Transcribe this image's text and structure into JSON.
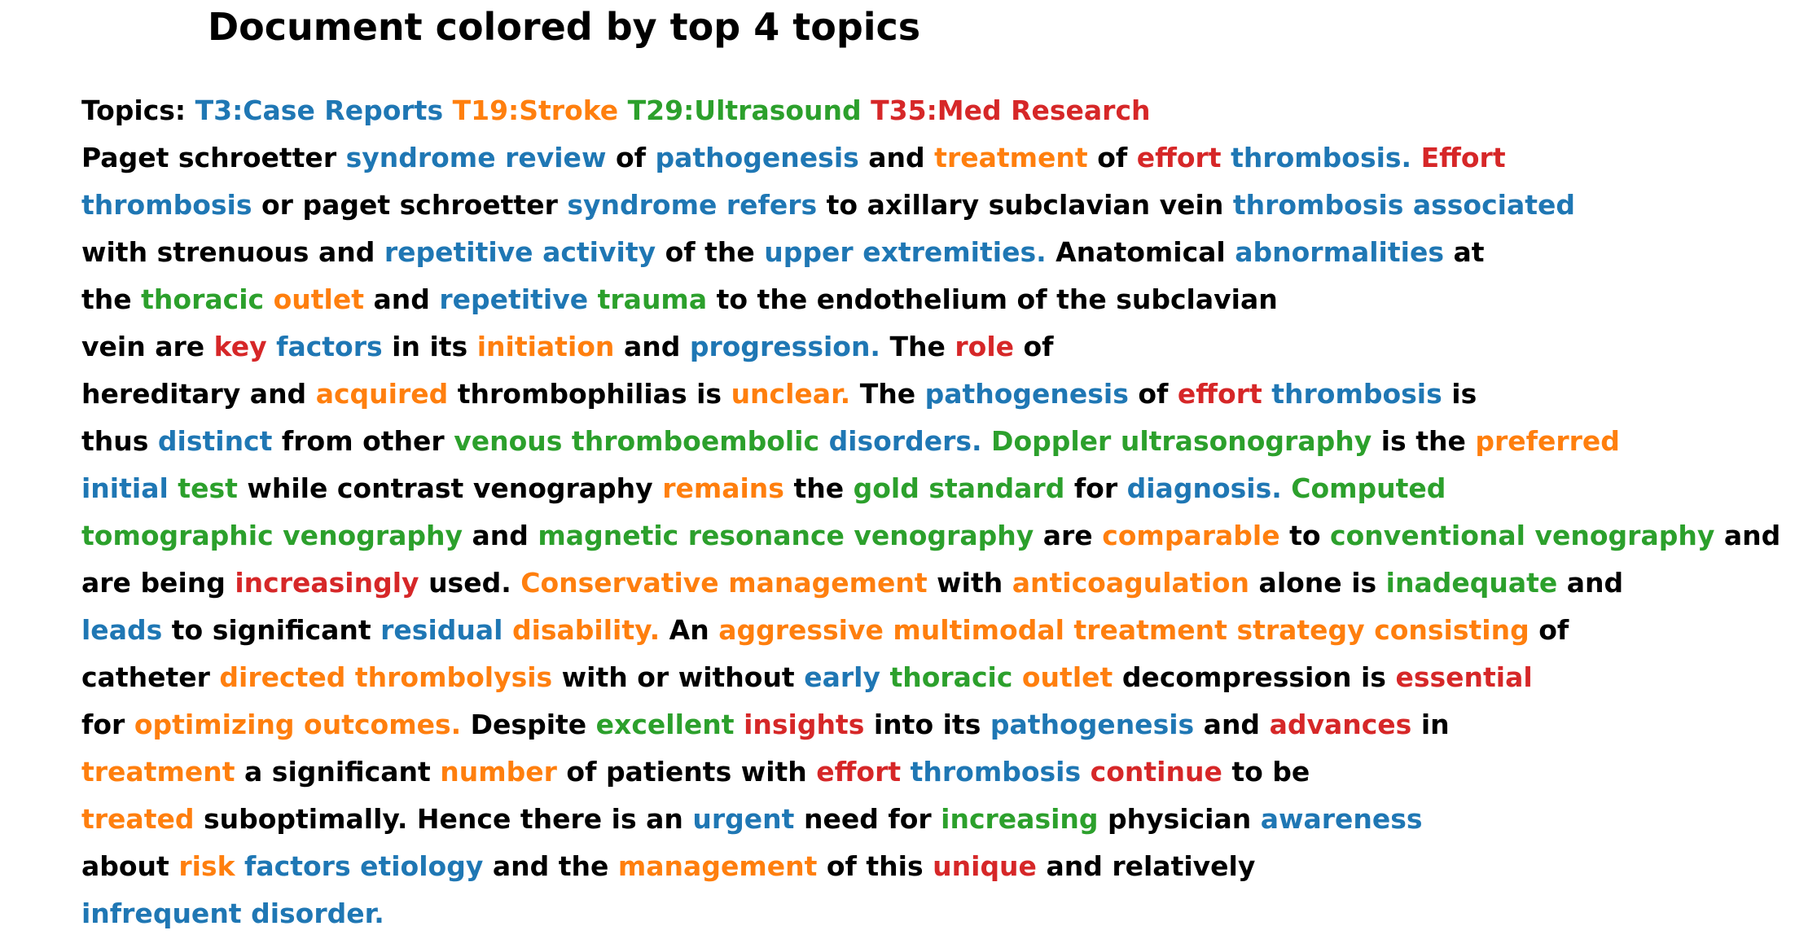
{
  "title": "Document colored by top 4 topics",
  "colors": {
    "k": "#000000",
    "t3": "#1f77b4",
    "t19": "#ff7f0e",
    "t29": "#2ca02c",
    "t35": "#d62728"
  },
  "lines": [
    [
      [
        "Topics:",
        "k"
      ],
      [
        "T3:Case Reports",
        "t3"
      ],
      [
        "T19:Stroke",
        "t19"
      ],
      [
        "T29:Ultrasound",
        "t29"
      ],
      [
        "T35:Med Research",
        "t35"
      ]
    ],
    [
      [
        "Paget",
        "k"
      ],
      [
        "schroetter",
        "k"
      ],
      [
        "syndrome",
        "t3"
      ],
      [
        "review",
        "t3"
      ],
      [
        "of",
        "k"
      ],
      [
        "pathogenesis",
        "t3"
      ],
      [
        "and",
        "k"
      ],
      [
        "treatment",
        "t19"
      ],
      [
        "of",
        "k"
      ],
      [
        "effort",
        "t35"
      ],
      [
        "thrombosis.",
        "t3"
      ],
      [
        "Effort",
        "t35"
      ]
    ],
    [
      [
        "thrombosis",
        "t3"
      ],
      [
        "or",
        "k"
      ],
      [
        "paget",
        "k"
      ],
      [
        "schroetter",
        "k"
      ],
      [
        "syndrome",
        "t3"
      ],
      [
        "refers",
        "t3"
      ],
      [
        "to",
        "k"
      ],
      [
        "axillary",
        "k"
      ],
      [
        "subclavian",
        "k"
      ],
      [
        "vein",
        "k"
      ],
      [
        "thrombosis",
        "t3"
      ],
      [
        "associated",
        "t3"
      ]
    ],
    [
      [
        "with",
        "k"
      ],
      [
        "strenuous",
        "k"
      ],
      [
        "and",
        "k"
      ],
      [
        "repetitive",
        "t3"
      ],
      [
        "activity",
        "t3"
      ],
      [
        "of",
        "k"
      ],
      [
        "the",
        "k"
      ],
      [
        "upper",
        "t3"
      ],
      [
        "extremities.",
        "t3"
      ],
      [
        "Anatomical",
        "k"
      ],
      [
        "abnormalities",
        "t3"
      ],
      [
        "at",
        "k"
      ]
    ],
    [
      [
        "the",
        "k"
      ],
      [
        "thoracic",
        "t29"
      ],
      [
        "outlet",
        "t19"
      ],
      [
        "and",
        "k"
      ],
      [
        "repetitive",
        "t3"
      ],
      [
        "trauma",
        "t29"
      ],
      [
        "to",
        "k"
      ],
      [
        "the",
        "k"
      ],
      [
        "endothelium",
        "k"
      ],
      [
        "of",
        "k"
      ],
      [
        "the",
        "k"
      ],
      [
        "subclavian",
        "k"
      ]
    ],
    [
      [
        "vein",
        "k"
      ],
      [
        "are",
        "k"
      ],
      [
        "key",
        "t35"
      ],
      [
        "factors",
        "t3"
      ],
      [
        "in",
        "k"
      ],
      [
        "its",
        "k"
      ],
      [
        "initiation",
        "t19"
      ],
      [
        "and",
        "k"
      ],
      [
        "progression.",
        "t3"
      ],
      [
        "The",
        "k"
      ],
      [
        "role",
        "t35"
      ],
      [
        "of",
        "k"
      ]
    ],
    [
      [
        "hereditary",
        "k"
      ],
      [
        "and",
        "k"
      ],
      [
        "acquired",
        "t19"
      ],
      [
        "thrombophilias",
        "k"
      ],
      [
        "is",
        "k"
      ],
      [
        "unclear.",
        "t19"
      ],
      [
        "The",
        "k"
      ],
      [
        "pathogenesis",
        "t3"
      ],
      [
        "of",
        "k"
      ],
      [
        "effort",
        "t35"
      ],
      [
        "thrombosis",
        "t3"
      ],
      [
        "is",
        "k"
      ]
    ],
    [
      [
        "thus",
        "k"
      ],
      [
        "distinct",
        "t3"
      ],
      [
        "from",
        "k"
      ],
      [
        "other",
        "k"
      ],
      [
        "venous",
        "t29"
      ],
      [
        "thromboembolic",
        "t29"
      ],
      [
        "disorders.",
        "t3"
      ],
      [
        "Doppler",
        "t29"
      ],
      [
        "ultrasonography",
        "t29"
      ],
      [
        "is",
        "k"
      ],
      [
        "the",
        "k"
      ],
      [
        "preferred",
        "t19"
      ]
    ],
    [
      [
        "initial",
        "t3"
      ],
      [
        "test",
        "t29"
      ],
      [
        "while",
        "k"
      ],
      [
        "contrast",
        "k"
      ],
      [
        "venography",
        "k"
      ],
      [
        "remains",
        "t19"
      ],
      [
        "the",
        "k"
      ],
      [
        "gold",
        "t29"
      ],
      [
        "standard",
        "t29"
      ],
      [
        "for",
        "k"
      ],
      [
        "diagnosis.",
        "t3"
      ],
      [
        "Computed",
        "t29"
      ]
    ],
    [
      [
        "tomographic",
        "t29"
      ],
      [
        "venography",
        "t29"
      ],
      [
        "and",
        "k"
      ],
      [
        "magnetic",
        "t29"
      ],
      [
        "resonance",
        "t29"
      ],
      [
        "venography",
        "t29"
      ],
      [
        "are",
        "k"
      ],
      [
        "comparable",
        "t19"
      ],
      [
        "to",
        "k"
      ],
      [
        "conventional",
        "t29"
      ],
      [
        "venography",
        "t29"
      ],
      [
        "and",
        "k"
      ]
    ],
    [
      [
        "are",
        "k"
      ],
      [
        "being",
        "k"
      ],
      [
        "increasingly",
        "t35"
      ],
      [
        "used.",
        "k"
      ],
      [
        "Conservative",
        "t19"
      ],
      [
        "management",
        "t19"
      ],
      [
        "with",
        "k"
      ],
      [
        "anticoagulation",
        "t19"
      ],
      [
        "alone",
        "k"
      ],
      [
        "is",
        "k"
      ],
      [
        "inadequate",
        "t29"
      ],
      [
        "and",
        "k"
      ]
    ],
    [
      [
        "leads",
        "t3"
      ],
      [
        "to",
        "k"
      ],
      [
        "significant",
        "k"
      ],
      [
        "residual",
        "t3"
      ],
      [
        "disability.",
        "t19"
      ],
      [
        "An",
        "k"
      ],
      [
        "aggressive",
        "t19"
      ],
      [
        "multimodal",
        "t19"
      ],
      [
        "treatment",
        "t19"
      ],
      [
        "strategy",
        "t19"
      ],
      [
        "consisting",
        "t19"
      ],
      [
        "of",
        "k"
      ]
    ],
    [
      [
        "catheter",
        "k"
      ],
      [
        "directed",
        "t19"
      ],
      [
        "thrombolysis",
        "t19"
      ],
      [
        "with",
        "k"
      ],
      [
        "or",
        "k"
      ],
      [
        "without",
        "k"
      ],
      [
        "early",
        "t3"
      ],
      [
        "thoracic",
        "t29"
      ],
      [
        "outlet",
        "t19"
      ],
      [
        "decompression",
        "k"
      ],
      [
        "is",
        "k"
      ],
      [
        "essential",
        "t35"
      ]
    ],
    [
      [
        "for",
        "k"
      ],
      [
        "optimizing",
        "t19"
      ],
      [
        "outcomes.",
        "t19"
      ],
      [
        "Despite",
        "k"
      ],
      [
        "excellent",
        "t29"
      ],
      [
        "insights",
        "t35"
      ],
      [
        "into",
        "k"
      ],
      [
        "its",
        "k"
      ],
      [
        "pathogenesis",
        "t3"
      ],
      [
        "and",
        "k"
      ],
      [
        "advances",
        "t35"
      ],
      [
        "in",
        "k"
      ]
    ],
    [
      [
        "treatment",
        "t19"
      ],
      [
        "a",
        "k"
      ],
      [
        "significant",
        "k"
      ],
      [
        "number",
        "t19"
      ],
      [
        "of",
        "k"
      ],
      [
        "patients",
        "k"
      ],
      [
        "with",
        "k"
      ],
      [
        "effort",
        "t35"
      ],
      [
        "thrombosis",
        "t3"
      ],
      [
        "continue",
        "t35"
      ],
      [
        "to",
        "k"
      ],
      [
        "be",
        "k"
      ]
    ],
    [
      [
        "treated",
        "t19"
      ],
      [
        "suboptimally.",
        "k"
      ],
      [
        "Hence",
        "k"
      ],
      [
        "there",
        "k"
      ],
      [
        "is",
        "k"
      ],
      [
        "an",
        "k"
      ],
      [
        "urgent",
        "t3"
      ],
      [
        "need",
        "k"
      ],
      [
        "for",
        "k"
      ],
      [
        "increasing",
        "t29"
      ],
      [
        "physician",
        "k"
      ],
      [
        "awareness",
        "t3"
      ]
    ],
    [
      [
        "about",
        "k"
      ],
      [
        "risk",
        "t19"
      ],
      [
        "factors",
        "t3"
      ],
      [
        "etiology",
        "t3"
      ],
      [
        "and",
        "k"
      ],
      [
        "the",
        "k"
      ],
      [
        "management",
        "t19"
      ],
      [
        "of",
        "k"
      ],
      [
        "this",
        "k"
      ],
      [
        "unique",
        "t35"
      ],
      [
        "and",
        "k"
      ],
      [
        "relatively",
        "k"
      ]
    ],
    [
      [
        "infrequent",
        "t3"
      ],
      [
        "disorder.",
        "t3"
      ]
    ]
  ]
}
